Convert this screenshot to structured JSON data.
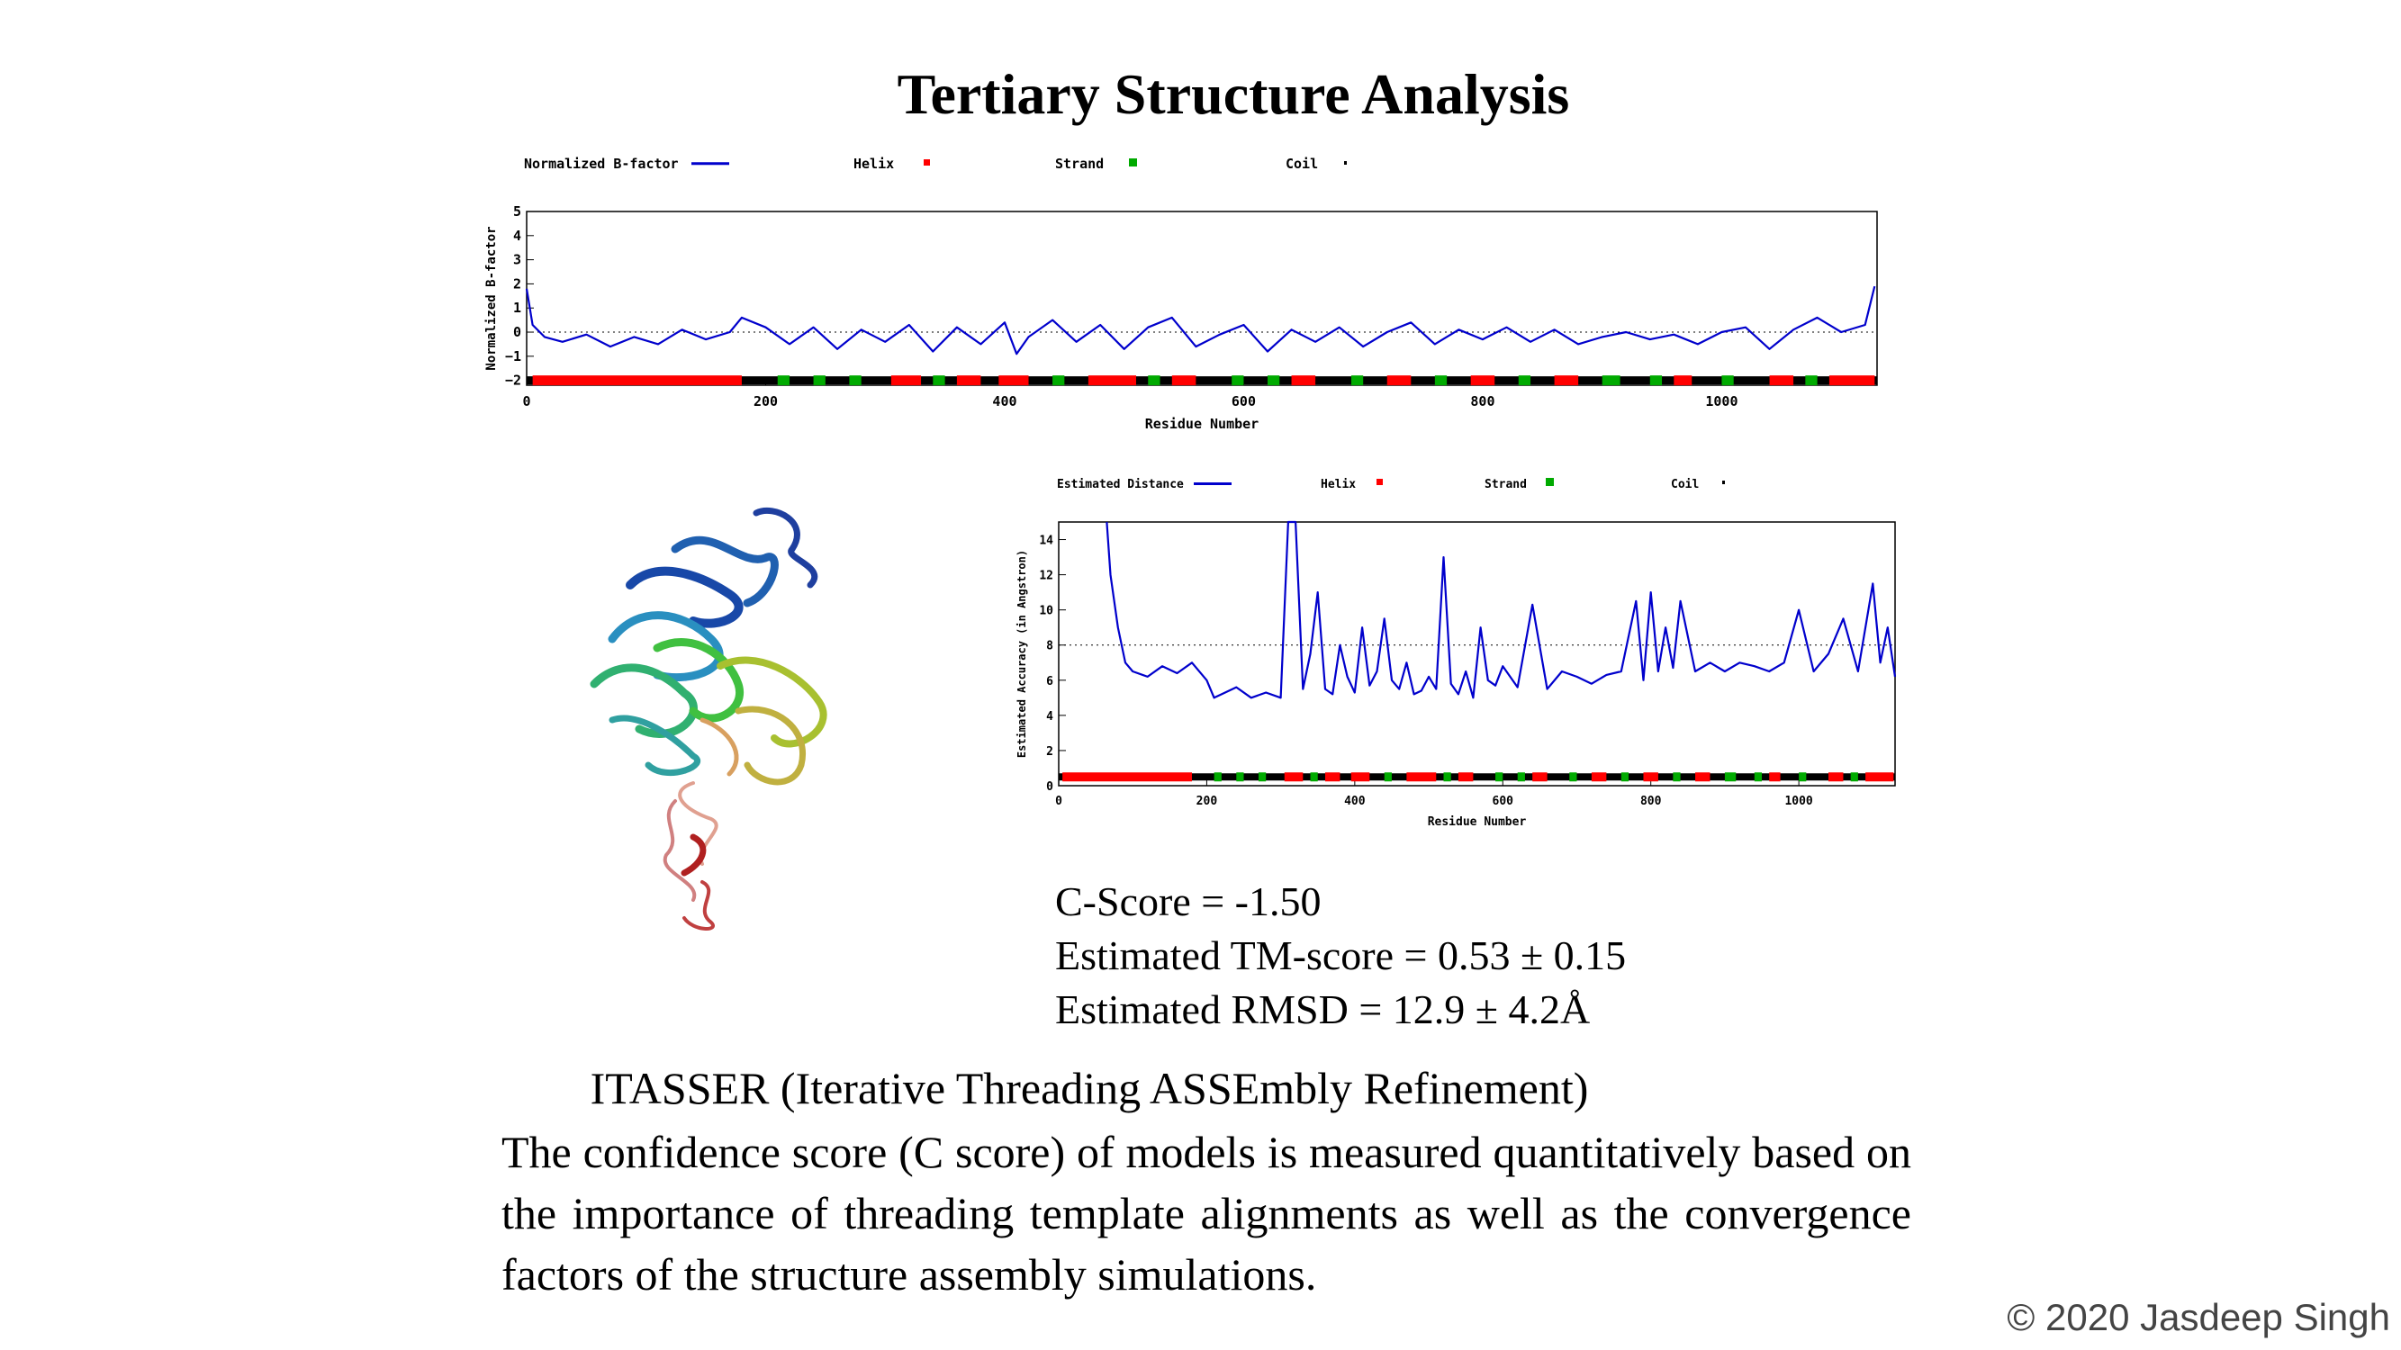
{
  "slide": {
    "title": "Tertiary Structure Analysis",
    "metrics": [
      "C-Score = -1.50",
      "Estimated TM-score = 0.53 ± 0.15",
      "Estimated RMSD = 12.9 ± 4.2Å"
    ],
    "description_heading": "ITASSER (Iterative Threading ASSEmbly Refinement)",
    "description_body": "The confidence score (C score) of models is measured quantitatively based on the importance of threading template alignments as well as the convergence factors of the structure assembly simulations.",
    "copyright": "© 2020 Jasdeep Singh"
  },
  "colors": {
    "line": "#0000cc",
    "helix": "#ff0000",
    "strand": "#00aa00",
    "coil": "#000000"
  },
  "chart_data": [
    {
      "type": "line",
      "legend": [
        "Normalized B-factor",
        "Helix",
        "Strand",
        "Coil"
      ],
      "xlabel": "Residue Number",
      "ylabel": "Normalized B-factor",
      "xlim": [
        0,
        1130
      ],
      "ylim": [
        -2.2,
        5
      ],
      "xticks": [
        0,
        200,
        400,
        600,
        800,
        1000
      ],
      "yticks": [
        -2,
        -1,
        0,
        1,
        2,
        3,
        4,
        5
      ],
      "reference_line": 0,
      "track_y": -2,
      "series": [
        {
          "name": "Normalized B-factor",
          "x": [
            0,
            5,
            15,
            30,
            50,
            70,
            90,
            110,
            130,
            150,
            170,
            180,
            200,
            220,
            240,
            260,
            280,
            300,
            320,
            340,
            360,
            380,
            400,
            410,
            420,
            440,
            460,
            480,
            500,
            520,
            540,
            560,
            580,
            600,
            620,
            640,
            660,
            680,
            700,
            720,
            740,
            760,
            780,
            800,
            820,
            840,
            860,
            880,
            900,
            920,
            940,
            960,
            980,
            1000,
            1020,
            1040,
            1060,
            1080,
            1100,
            1120,
            1128
          ],
          "values": [
            1.8,
            0.3,
            -0.2,
            -0.4,
            -0.1,
            -0.6,
            -0.2,
            -0.5,
            0.1,
            -0.3,
            0.0,
            0.6,
            0.2,
            -0.5,
            0.2,
            -0.7,
            0.1,
            -0.4,
            0.3,
            -0.8,
            0.2,
            -0.5,
            0.4,
            -0.9,
            -0.2,
            0.5,
            -0.4,
            0.3,
            -0.7,
            0.2,
            0.6,
            -0.6,
            -0.1,
            0.3,
            -0.8,
            0.1,
            -0.4,
            0.2,
            -0.6,
            0.0,
            0.4,
            -0.5,
            0.1,
            -0.3,
            0.2,
            -0.4,
            0.1,
            -0.5,
            -0.2,
            0.0,
            -0.3,
            -0.1,
            -0.5,
            0.0,
            0.2,
            -0.7,
            0.1,
            0.6,
            0.0,
            0.3,
            1.9
          ]
        }
      ],
      "helix_regions": [
        [
          5,
          180
        ],
        [
          305,
          330
        ],
        [
          360,
          380
        ],
        [
          395,
          420
        ],
        [
          470,
          510
        ],
        [
          540,
          560
        ],
        [
          640,
          660
        ],
        [
          720,
          740
        ],
        [
          790,
          810
        ],
        [
          860,
          880
        ],
        [
          960,
          975
        ],
        [
          1040,
          1060
        ],
        [
          1090,
          1128
        ]
      ],
      "strand_regions": [
        [
          210,
          220
        ],
        [
          240,
          250
        ],
        [
          270,
          280
        ],
        [
          340,
          350
        ],
        [
          440,
          450
        ],
        [
          520,
          530
        ],
        [
          590,
          600
        ],
        [
          620,
          630
        ],
        [
          690,
          700
        ],
        [
          760,
          770
        ],
        [
          830,
          840
        ],
        [
          900,
          915
        ],
        [
          940,
          950
        ],
        [
          1000,
          1010
        ],
        [
          1070,
          1080
        ]
      ]
    },
    {
      "type": "line",
      "legend": [
        "Estimated Distance",
        "Helix",
        "Strand",
        "Coil"
      ],
      "xlabel": "Residue Number",
      "ylabel": "Estimated Accuracy (in Angstron)",
      "xlim": [
        0,
        1130
      ],
      "ylim": [
        0,
        15
      ],
      "xticks": [
        0,
        200,
        400,
        600,
        800,
        1000
      ],
      "yticks": [
        0,
        2,
        4,
        6,
        8,
        10,
        12,
        14
      ],
      "reference_line": 8,
      "track_y": 0.5,
      "series": [
        {
          "name": "Estimated Distance",
          "x": [
            65,
            70,
            80,
            90,
            100,
            120,
            140,
            160,
            180,
            200,
            210,
            220,
            240,
            260,
            280,
            300,
            310,
            320,
            330,
            340,
            350,
            360,
            370,
            380,
            390,
            400,
            410,
            420,
            430,
            440,
            450,
            460,
            470,
            480,
            490,
            500,
            510,
            520,
            530,
            540,
            550,
            560,
            570,
            580,
            590,
            600,
            620,
            640,
            660,
            680,
            700,
            720,
            740,
            760,
            780,
            790,
            800,
            810,
            820,
            830,
            840,
            860,
            880,
            900,
            920,
            940,
            960,
            980,
            1000,
            1020,
            1040,
            1060,
            1080,
            1100,
            1110,
            1120,
            1130
          ],
          "values": [
            15,
            12,
            9,
            7,
            6.5,
            6.2,
            6.8,
            6.4,
            7,
            6,
            5,
            5.2,
            5.6,
            5,
            5.3,
            5,
            15,
            15,
            5.5,
            7.5,
            11,
            5.5,
            5.2,
            8,
            6.2,
            5.3,
            9,
            5.7,
            6.5,
            9.5,
            6,
            5.5,
            7,
            5.2,
            5.4,
            6.2,
            5.5,
            13,
            5.8,
            5.2,
            6.5,
            5,
            9,
            6,
            5.7,
            6.8,
            5.6,
            10.3,
            5.5,
            6.5,
            6.2,
            5.8,
            6.3,
            6.5,
            10.5,
            6,
            11,
            6.5,
            9,
            6.7,
            10.5,
            6.5,
            7,
            6.5,
            7,
            6.8,
            6.5,
            7,
            10,
            6.5,
            7.5,
            9.5,
            6.5,
            11.5,
            7,
            9,
            6.2
          ]
        }
      ],
      "helix_regions": [
        [
          5,
          180
        ],
        [
          305,
          330
        ],
        [
          360,
          380
        ],
        [
          395,
          420
        ],
        [
          470,
          510
        ],
        [
          540,
          560
        ],
        [
          640,
          660
        ],
        [
          720,
          740
        ],
        [
          790,
          810
        ],
        [
          860,
          880
        ],
        [
          960,
          975
        ],
        [
          1040,
          1060
        ],
        [
          1090,
          1128
        ]
      ],
      "strand_regions": [
        [
          210,
          220
        ],
        [
          240,
          250
        ],
        [
          270,
          280
        ],
        [
          340,
          350
        ],
        [
          440,
          450
        ],
        [
          520,
          530
        ],
        [
          590,
          600
        ],
        [
          620,
          630
        ],
        [
          690,
          700
        ],
        [
          760,
          770
        ],
        [
          830,
          840
        ],
        [
          900,
          915
        ],
        [
          940,
          950
        ],
        [
          1000,
          1010
        ],
        [
          1070,
          1080
        ]
      ]
    }
  ]
}
